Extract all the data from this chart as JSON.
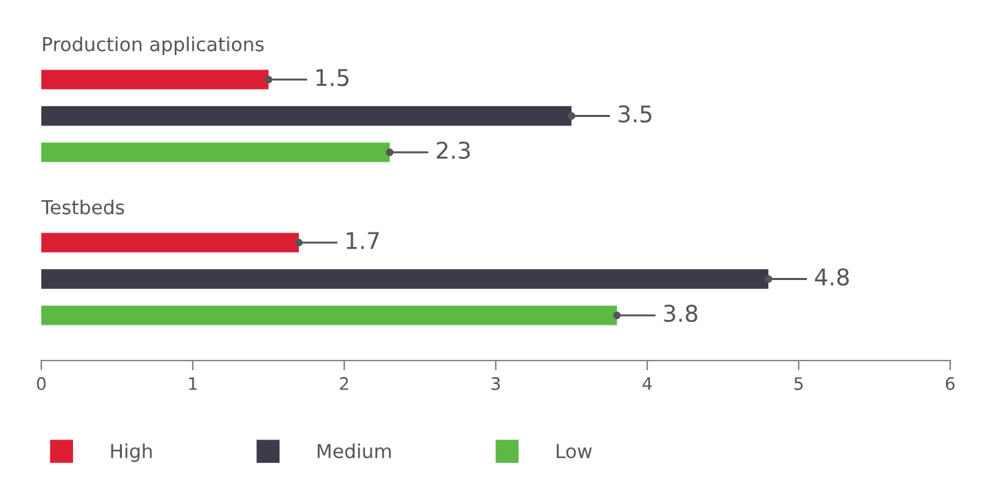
{
  "chart_data": {
    "type": "bar",
    "orientation": "horizontal",
    "categories": [
      "Production applications",
      "Testbeds"
    ],
    "series": [
      {
        "name": "High",
        "color": "#dc1e35",
        "values": [
          1.5,
          1.7
        ]
      },
      {
        "name": "Medium",
        "color": "#3f3a4a",
        "values": [
          3.5,
          4.8
        ]
      },
      {
        "name": "Low",
        "color": "#5cb946",
        "values": [
          2.3,
          3.8
        ]
      }
    ],
    "xlim": [
      0,
      6
    ],
    "xticks": [
      0,
      1,
      2,
      3,
      4,
      5,
      6
    ],
    "data_labels": true,
    "grid": false,
    "legend": "bottom"
  }
}
